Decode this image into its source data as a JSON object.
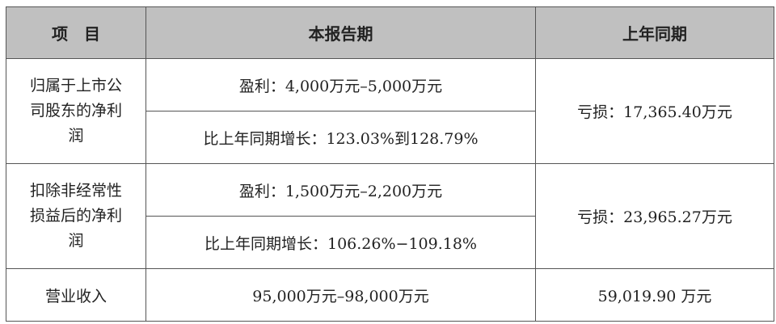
{
  "header": {
    "item": "项　目",
    "current": "本报告期",
    "prior": "上年同期"
  },
  "rows": [
    {
      "item": "归属于上市公司股东的净利润",
      "current_profit": "盈利：4,000万元–5,000万元",
      "current_growth": "比上年同期增长：123.03%到128.79%",
      "prior": "亏损：17,365.40万元"
    },
    {
      "item": "扣除非经常性损益后的净利润",
      "current_profit": "盈利：1,500万元–2,200万元",
      "current_growth": "比上年同期增长：106.26%−109.18%",
      "prior": "亏损：23,965.27万元"
    },
    {
      "item": "营业收入",
      "current": "95,000万元–98,000万元",
      "prior": "59,019.90 万元"
    }
  ]
}
